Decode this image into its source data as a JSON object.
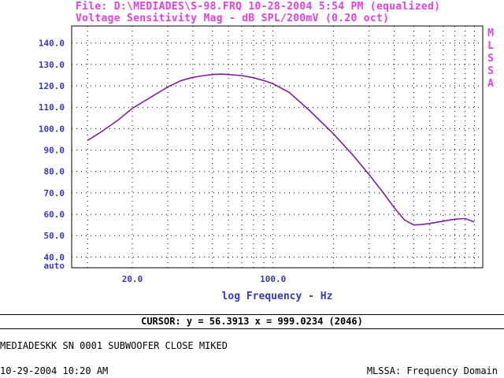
{
  "header": {
    "file_line": "File: D:\\MEDIADES\\S-98.FRQ 10-28-2004 5:54 PM (equalized)",
    "measurement_line": "Voltage Sensitivity Mag - dB SPL/200mV (0.20 oct)"
  },
  "side_label": [
    "M",
    "L",
    "S",
    "S",
    "A"
  ],
  "cursor_readout": "CURSOR: y = 56.3913 x = 999.0234 (2046)",
  "description": "MEDIADESKK SN 0001 SUBWOOFER CLOSE MIKED",
  "footer": {
    "timestamp": "10-29-2004 10:20 AM",
    "mode": "MLSSA: Frequency Domain"
  },
  "colors": {
    "title": "#e040e0",
    "axis_text": "#3838c0",
    "curve": "#8020a0",
    "grid": "#000000"
  },
  "chart_data": {
    "type": "line",
    "title": "Voltage Sensitivity Mag - dB SPL/200mV (0.20 oct)",
    "xlabel": "log Frequency - Hz",
    "ylabel": "",
    "xscale": "log",
    "xlim": [
      10,
      1100
    ],
    "ylim": [
      35,
      148
    ],
    "grid": true,
    "y_ticks": [
      {
        "value": 140,
        "label": "140.0"
      },
      {
        "value": 130,
        "label": "130.0"
      },
      {
        "value": 120,
        "label": "120.0"
      },
      {
        "value": 110,
        "label": "110.0"
      },
      {
        "value": 100,
        "label": "100.0"
      },
      {
        "value": 90,
        "label": "90.0"
      },
      {
        "value": 80,
        "label": "80.0"
      },
      {
        "value": 70,
        "label": "70.0"
      },
      {
        "value": 60,
        "label": "60.0"
      },
      {
        "value": 50,
        "label": "50.0"
      },
      {
        "value": 40,
        "label": "40.0"
      }
    ],
    "y_bottom_label": "auto",
    "x_ticks": [
      {
        "value": 20,
        "label": "20.0"
      },
      {
        "value": 100,
        "label": "100.0"
      }
    ],
    "x_grid": [
      12,
      20,
      30,
      40,
      50,
      60,
      70,
      80,
      90,
      100,
      200,
      300,
      400,
      500,
      600,
      700,
      800,
      900,
      1000
    ],
    "series": [
      {
        "values": [
          [
            12,
            94.5
          ],
          [
            14,
            98.5
          ],
          [
            17,
            104
          ],
          [
            20,
            109.5
          ],
          [
            25,
            115
          ],
          [
            30,
            119.5
          ],
          [
            35,
            122.5
          ],
          [
            40,
            124
          ],
          [
            45,
            124.8
          ],
          [
            50,
            125.3
          ],
          [
            55,
            125.5
          ],
          [
            60,
            125.3
          ],
          [
            70,
            124.8
          ],
          [
            80,
            123.8
          ],
          [
            90,
            122.5
          ],
          [
            100,
            121
          ],
          [
            120,
            117
          ],
          [
            150,
            109
          ],
          [
            200,
            97.5
          ],
          [
            250,
            87.5
          ],
          [
            300,
            78.5
          ],
          [
            350,
            70.5
          ],
          [
            400,
            63
          ],
          [
            450,
            57.3
          ],
          [
            500,
            55
          ],
          [
            550,
            55.2
          ],
          [
            600,
            55.7
          ],
          [
            700,
            56.8
          ],
          [
            800,
            57.7
          ],
          [
            900,
            58
          ],
          [
            1000,
            56.4
          ]
        ]
      }
    ]
  }
}
